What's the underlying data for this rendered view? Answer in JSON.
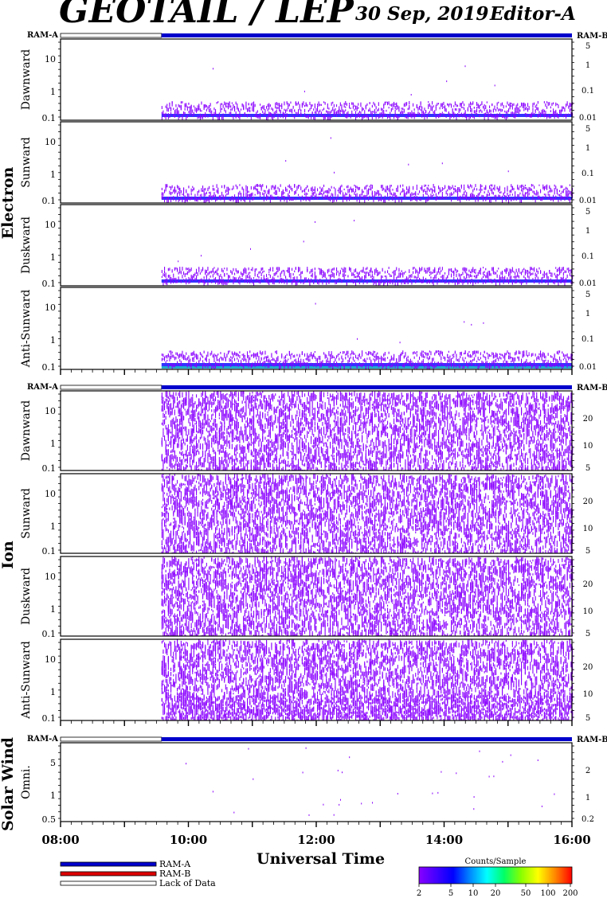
{
  "header": {
    "title": "GEOTAIL / LEP",
    "date": "30 Sep, 2019",
    "editor": "Editor-A"
  },
  "chart_data": {
    "type": "heatmap",
    "xlabel": "Universal Time",
    "x_ticks": [
      "08:00",
      "10:00",
      "12:00",
      "14:00",
      "16:00"
    ],
    "xlim_hours": [
      8,
      16
    ],
    "data_start_hour": 9.58,
    "mode_bar": {
      "left_label": "RAM-A",
      "right_label": "RAM-B"
    },
    "groups": [
      {
        "label": "Electron",
        "panels": [
          {
            "label": "Dawnward",
            "left_ticks": [
              "10",
              "1",
              "0.1"
            ],
            "right_ticks": [
              "5",
              "1",
              "0.1",
              "0.01"
            ]
          },
          {
            "label": "Sunward",
            "left_ticks": [
              "10",
              "1",
              "0.1"
            ],
            "right_ticks": [
              "5",
              "1",
              "0.1",
              "0.01"
            ]
          },
          {
            "label": "Duskward",
            "left_ticks": [
              "10",
              "1",
              "0.1"
            ],
            "right_ticks": [
              "5",
              "1",
              "0.1",
              "0.01"
            ]
          },
          {
            "label": "Anti-Sunward",
            "left_ticks": [
              "10",
              "1",
              "0.1"
            ],
            "right_ticks": [
              "5",
              "1",
              "0.1",
              "0.01"
            ]
          }
        ]
      },
      {
        "label": "Ion",
        "panels": [
          {
            "label": "Dawnward",
            "left_ticks": [
              "10",
              "1",
              "0.1"
            ],
            "right_ticks": [
              "20",
              "10",
              "5"
            ]
          },
          {
            "label": "Sunward",
            "left_ticks": [
              "10",
              "1",
              "0.1"
            ],
            "right_ticks": [
              "20",
              "10",
              "5"
            ]
          },
          {
            "label": "Duskward",
            "left_ticks": [
              "10",
              "1",
              "0.1"
            ],
            "right_ticks": [
              "20",
              "10",
              "5"
            ]
          },
          {
            "label": "Anti-Sunward",
            "left_ticks": [
              "10",
              "1",
              "0.1"
            ],
            "right_ticks": [
              "20",
              "10",
              "5"
            ]
          }
        ]
      },
      {
        "label": "Solar Wind",
        "panels": [
          {
            "label": "Omni.",
            "left_ticks": [
              "5",
              "1",
              "0.5"
            ],
            "right_ticks": [
              "2",
              "1",
              "0.2"
            ]
          }
        ]
      }
    ],
    "legend": {
      "items": [
        {
          "label": "RAM-A",
          "color": "#0000cc"
        },
        {
          "label": "RAM-B",
          "color": "#dd0000"
        },
        {
          "label": "Lack of Data",
          "color": "#ffffff"
        }
      ]
    },
    "colorbar": {
      "title": "Counts/Sample",
      "ticks": [
        "2",
        "5",
        "10",
        "20",
        "50",
        "100",
        "200"
      ],
      "colors": [
        "#8800ff",
        "#4400ff",
        "#0000ff",
        "#0088ff",
        "#00ffff",
        "#00ff66",
        "#88ff00",
        "#ffff00",
        "#ff8800",
        "#ff0000"
      ]
    },
    "data_colors": {
      "sparse": "#8a00ff",
      "dense": "#3333ff",
      "cyan": "#22aacc"
    }
  }
}
